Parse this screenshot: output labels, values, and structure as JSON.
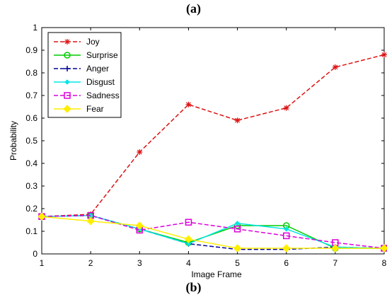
{
  "captions": {
    "top": "(a)",
    "bottom": "(b)"
  },
  "chart_data": {
    "type": "line",
    "title": "",
    "xlabel": "Image Frame",
    "ylabel": "Probability",
    "xlim": [
      1,
      8
    ],
    "ylim": [
      0,
      1
    ],
    "x": [
      1,
      2,
      3,
      4,
      5,
      6,
      7,
      8
    ],
    "xticks": [
      "1",
      "2",
      "3",
      "4",
      "5",
      "6",
      "7",
      "8"
    ],
    "yticks": [
      "0",
      "0.1",
      "0.2",
      "0.3",
      "0.4",
      "0.5",
      "0.6",
      "0.7",
      "0.8",
      "0.9",
      "1"
    ],
    "grid": false,
    "legend_position": "top-left",
    "series": [
      {
        "name": "Joy",
        "color": "#dd1111",
        "dash": "dashed",
        "marker": "star",
        "values": [
          0.165,
          0.175,
          0.45,
          0.66,
          0.59,
          0.645,
          0.825,
          0.88
        ]
      },
      {
        "name": "Surprise",
        "color": "#00cc00",
        "dash": "solid",
        "marker": "circle",
        "values": [
          0.165,
          0.17,
          0.11,
          0.05,
          0.125,
          0.125,
          0.025,
          0.025
        ]
      },
      {
        "name": "Anger",
        "color": "#000099",
        "dash": "dashed",
        "marker": "plus",
        "values": [
          0.165,
          0.17,
          0.11,
          0.045,
          0.02,
          0.02,
          0.03,
          0.025
        ]
      },
      {
        "name": "Disgust",
        "color": "#00e5e5",
        "dash": "solid",
        "marker": "diamond-small",
        "values": [
          0.165,
          0.17,
          0.11,
          0.045,
          0.135,
          0.11,
          0.03,
          0.025
        ]
      },
      {
        "name": "Sadness",
        "color": "#dd00dd",
        "dash": "dashed",
        "marker": "square",
        "values": [
          0.165,
          0.17,
          0.105,
          0.14,
          0.11,
          0.08,
          0.05,
          0.025
        ]
      },
      {
        "name": "Fear",
        "color": "#ffee00",
        "dash": "solid",
        "marker": "diamond",
        "values": [
          0.165,
          0.145,
          0.125,
          0.065,
          0.025,
          0.025,
          0.025,
          0.025
        ]
      }
    ]
  }
}
